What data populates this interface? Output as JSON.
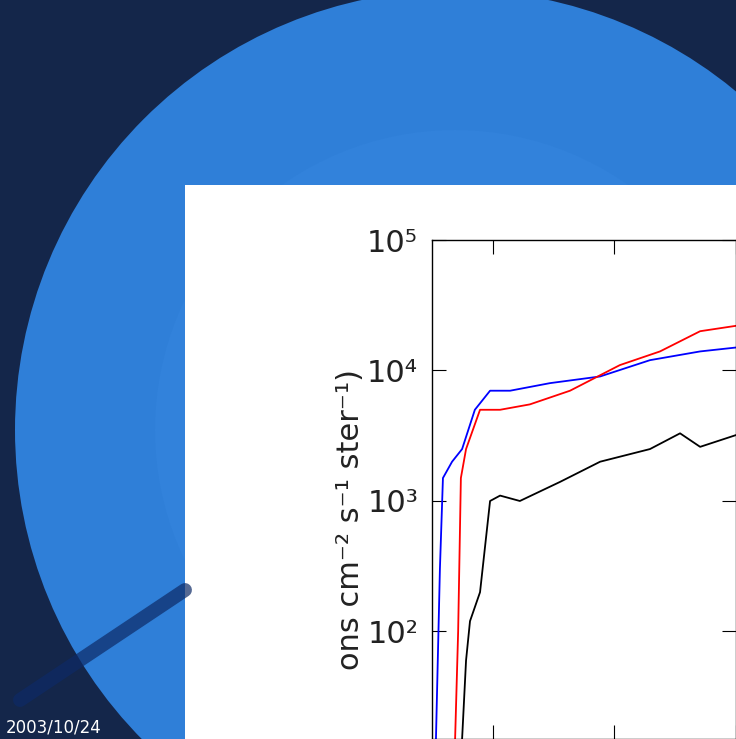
{
  "chart_data": {
    "type": "line",
    "y_label": "ons cm⁻² s⁻¹ ster⁻¹)",
    "log": "y",
    "xlim": [
      0,
      100
    ],
    "xticks": [
      20,
      60,
      100
    ],
    "ylim": [
      15,
      100000
    ],
    "yticks": [
      {
        "value": 100,
        "label": "10²"
      },
      {
        "value": 1000,
        "label": "10³"
      },
      {
        "value": 10000,
        "label": "10⁴"
      },
      {
        "value": 100000,
        "label": "10⁵"
      }
    ],
    "tick_labels": "y",
    "series": [
      {
        "color": "#0000ff",
        "x": [
          1.3,
          2.6,
          3.6,
          6.6,
          9.9,
          14.1,
          19.1,
          25.7,
          38.8,
          55.3,
          71.7,
          88.2,
          100
        ],
        "values": [
          15,
          300,
          1500,
          2000,
          2500,
          5000,
          7000,
          7000,
          8000,
          9000,
          12000,
          14000,
          15000
        ]
      },
      {
        "color": "#ff0000",
        "x": [
          7.6,
          8.6,
          9.5,
          11.2,
          15.8,
          22.4,
          32.2,
          45.4,
          61.8,
          75,
          88.2,
          100
        ],
        "values": [
          15,
          100,
          1500,
          2500,
          5000,
          5000,
          5500,
          7000,
          11000,
          14000,
          20000,
          22000
        ]
      },
      {
        "color": "#000000",
        "x": [
          9.9,
          11.2,
          12.5,
          15.8,
          19.1,
          22.4,
          28.9,
          42.1,
          55.3,
          71.7,
          81.6,
          88.2,
          100
        ],
        "values": [
          15,
          60,
          120,
          200,
          1000,
          1100,
          1000,
          1400,
          2000,
          2500,
          3300,
          2600,
          3200
        ]
      }
    ]
  },
  "image": {
    "date": "2003/10/24"
  }
}
